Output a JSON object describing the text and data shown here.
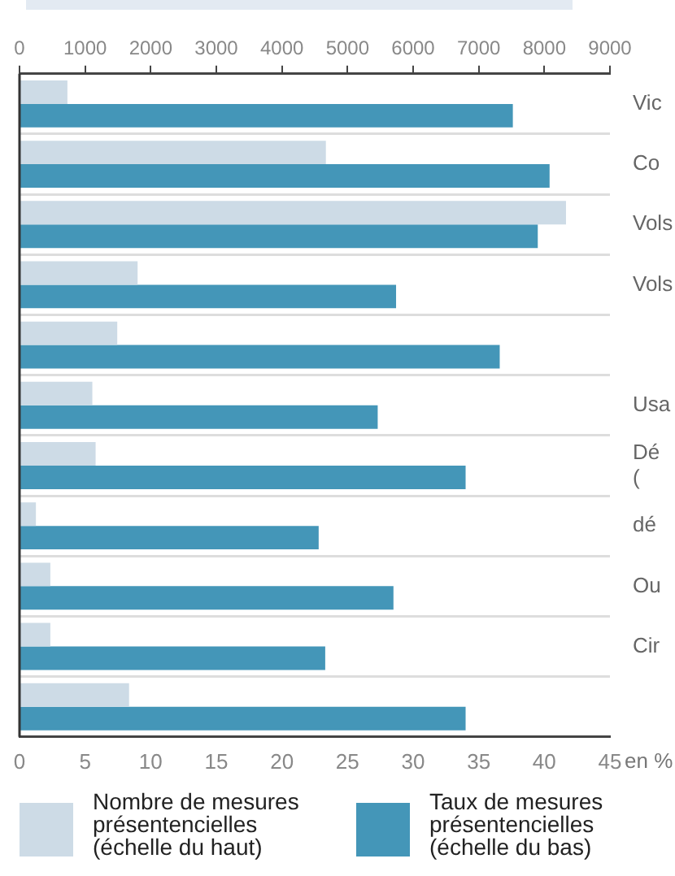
{
  "chart_data": {
    "type": "bar",
    "orientation": "horizontal",
    "xlabel": "en %",
    "categories": [
      "Vic",
      "Co",
      "Vols",
      "Vols",
      null,
      "Usa",
      "Dé\n(",
      "dé",
      "Ou",
      "Cir",
      null
    ],
    "series": [
      {
        "name": "Nombre de mesures présentencielles (échelle du haut)",
        "color": "#cddbe6",
        "axis": "x2",
        "values": [
          730,
          4670,
          8330,
          1800,
          1490,
          1110,
          1160,
          250,
          470,
          470,
          1670
        ]
      },
      {
        "name": "Taux de mesures présentencielles (échelle du bas)",
        "color": "#4496b8",
        "values": [
          37.6,
          40.4,
          39.5,
          28.7,
          36.6,
          27.3,
          34.0,
          22.8,
          28.5,
          23.3,
          34.0
        ]
      }
    ],
    "xlim": [
      0,
      45
    ],
    "xticks": [
      0,
      5,
      10,
      15,
      20,
      25,
      30,
      35,
      40,
      45
    ],
    "x2lim": [
      0,
      9000
    ],
    "x2ticks": [
      0,
      1000,
      2000,
      3000,
      4000,
      5000,
      6000,
      7000,
      8000,
      9000
    ],
    "grid": "y",
    "legend": "bottom"
  }
}
